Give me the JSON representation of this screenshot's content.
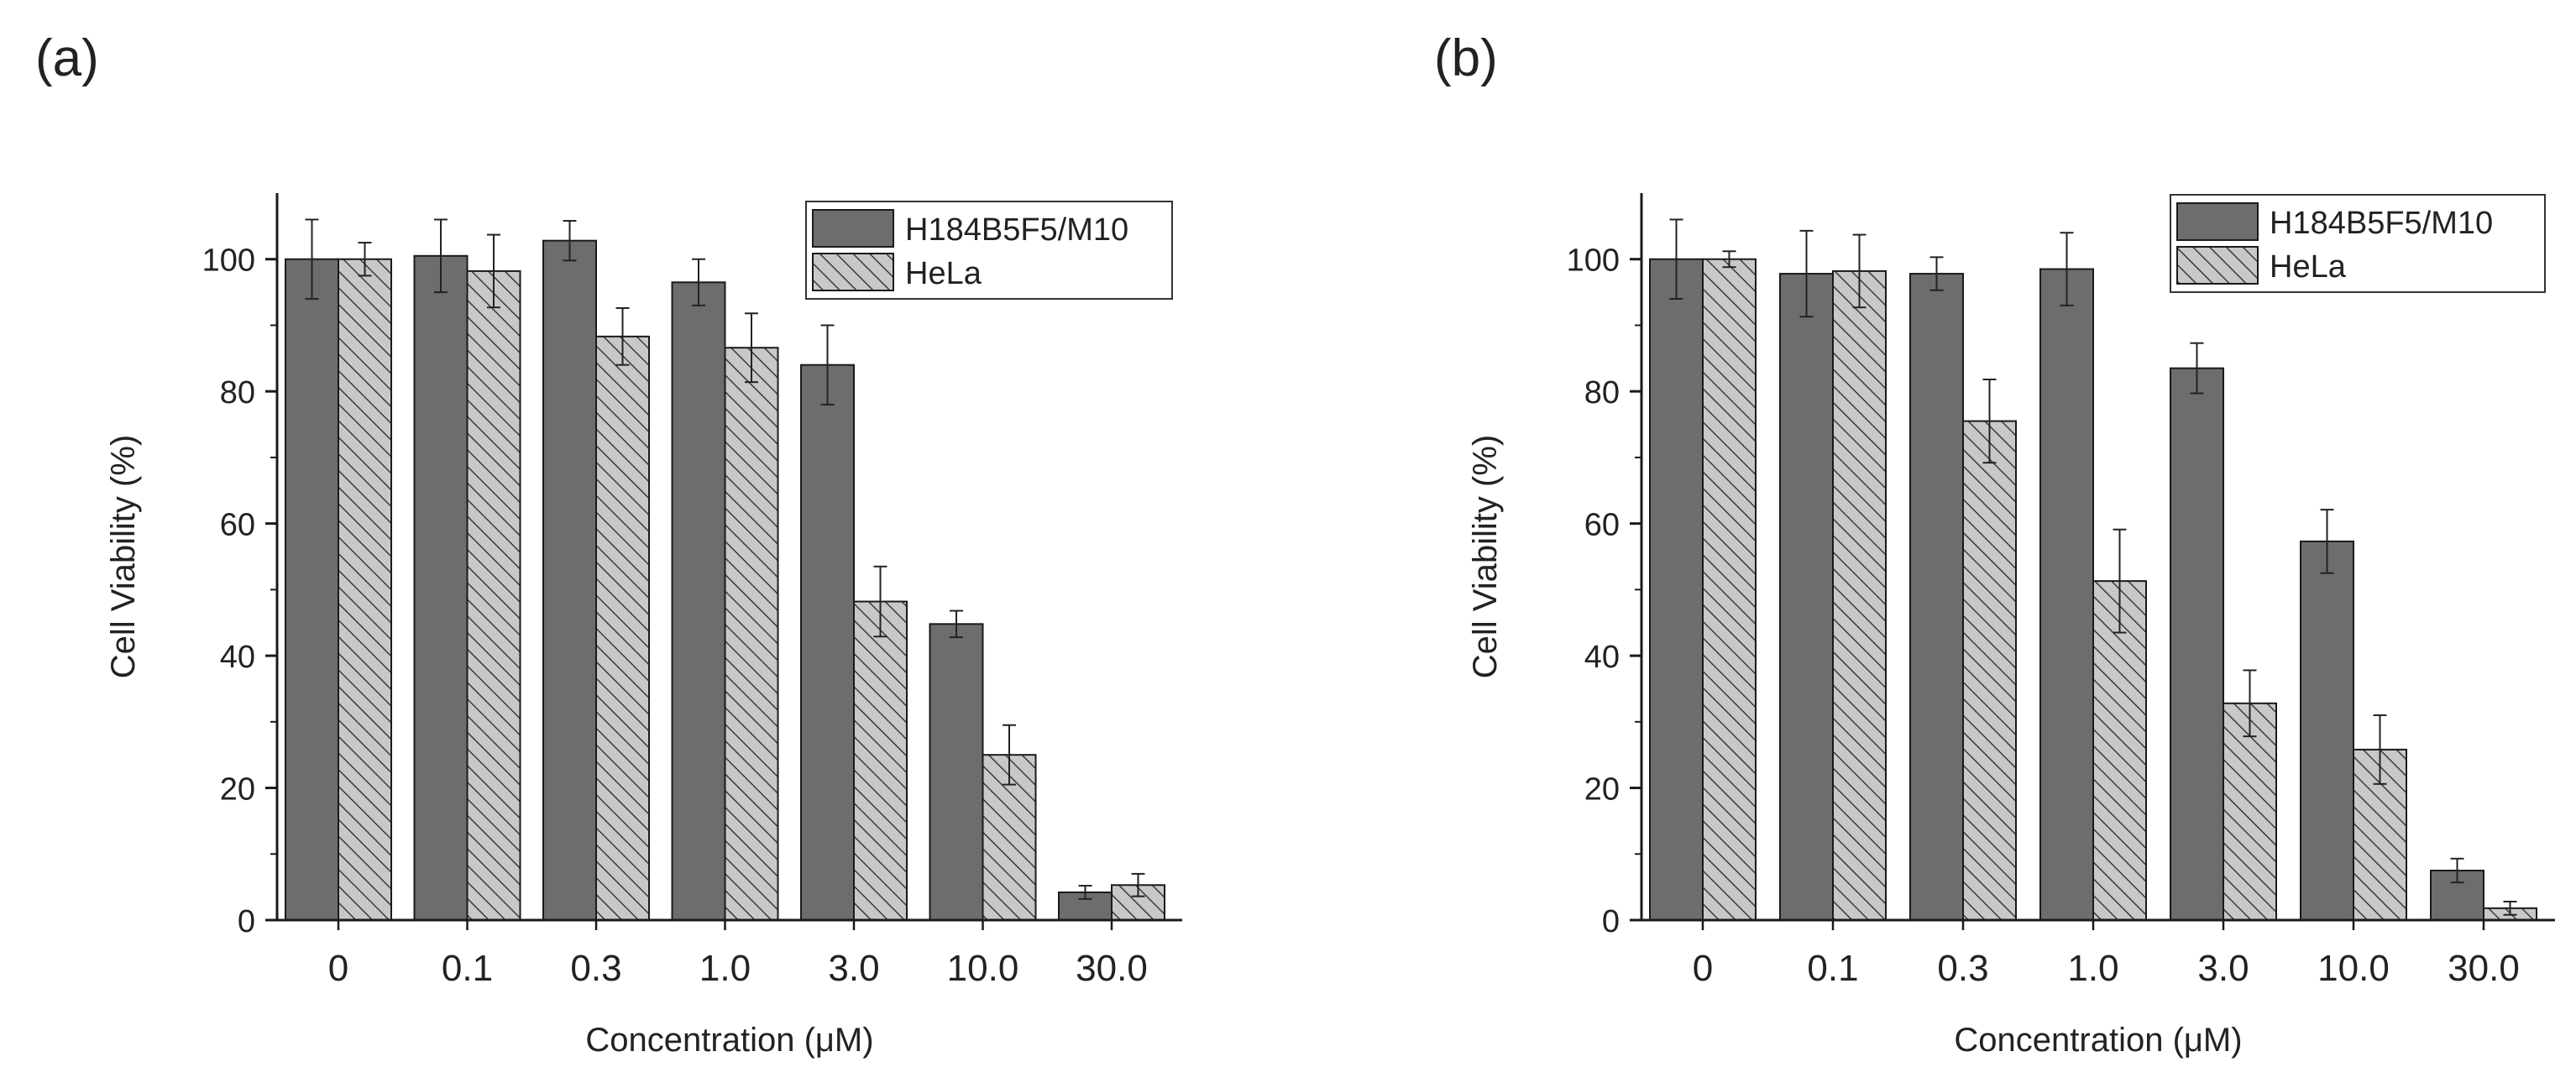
{
  "colors": {
    "bar_solid": "#6d6d6d",
    "bar_hatch_bg": "#c8c8c8",
    "hatch_line": "#3a3a3a",
    "axis": "#1a1a1a"
  },
  "legend": {
    "series1": "H184B5F5/M10",
    "series2": "HeLa"
  },
  "chart_data": [
    {
      "panel_label": "(a)",
      "type": "bar",
      "title": "",
      "xlabel": "Concentration (μM)",
      "ylabel": "Cell Viability (%)",
      "ylim": [
        0,
        110
      ],
      "yticks": [
        0,
        20,
        40,
        60,
        80,
        100
      ],
      "ytick_labels": [
        "0",
        "20",
        "40",
        "60",
        "80",
        "100"
      ],
      "categories": [
        "0",
        "0.1",
        "0.3",
        "1.0",
        "3.0",
        "10.0",
        "30.0"
      ],
      "series": [
        {
          "name": "H184B5F5/M10",
          "values": [
            100,
            100.5,
            102.8,
            96.5,
            84,
            44.8,
            4.2
          ],
          "errors": [
            6,
            5.5,
            3,
            3.5,
            6,
            2,
            1
          ]
        },
        {
          "name": "HeLa",
          "values": [
            100,
            98.2,
            88.3,
            86.6,
            48.2,
            25,
            5.3
          ],
          "errors": [
            2.5,
            5.5,
            4.3,
            5.2,
            5.3,
            4.5,
            1.7
          ]
        }
      ]
    },
    {
      "panel_label": "(b)",
      "type": "bar",
      "title": "",
      "xlabel": "Concentration (μM)",
      "ylabel": "Cell Viability (%)",
      "ylim": [
        0,
        110
      ],
      "yticks": [
        0,
        20,
        40,
        60,
        80,
        100
      ],
      "ytick_labels": [
        "0",
        "20",
        "40",
        "60",
        "80",
        "100"
      ],
      "categories": [
        "0",
        "0.1",
        "0.3",
        "1.0",
        "3.0",
        "10.0",
        "30.0"
      ],
      "series": [
        {
          "name": "H184B5F5/M10",
          "values": [
            100,
            97.8,
            97.8,
            98.5,
            83.5,
            57.3,
            7.5
          ],
          "errors": [
            6,
            6.5,
            2.5,
            5.5,
            3.8,
            4.8,
            1.8
          ]
        },
        {
          "name": "HeLa",
          "values": [
            100,
            98.2,
            75.5,
            51.3,
            32.8,
            25.8,
            1.8
          ],
          "errors": [
            1.2,
            5.5,
            6.3,
            7.8,
            5,
            5.2,
            1
          ]
        }
      ]
    }
  ]
}
